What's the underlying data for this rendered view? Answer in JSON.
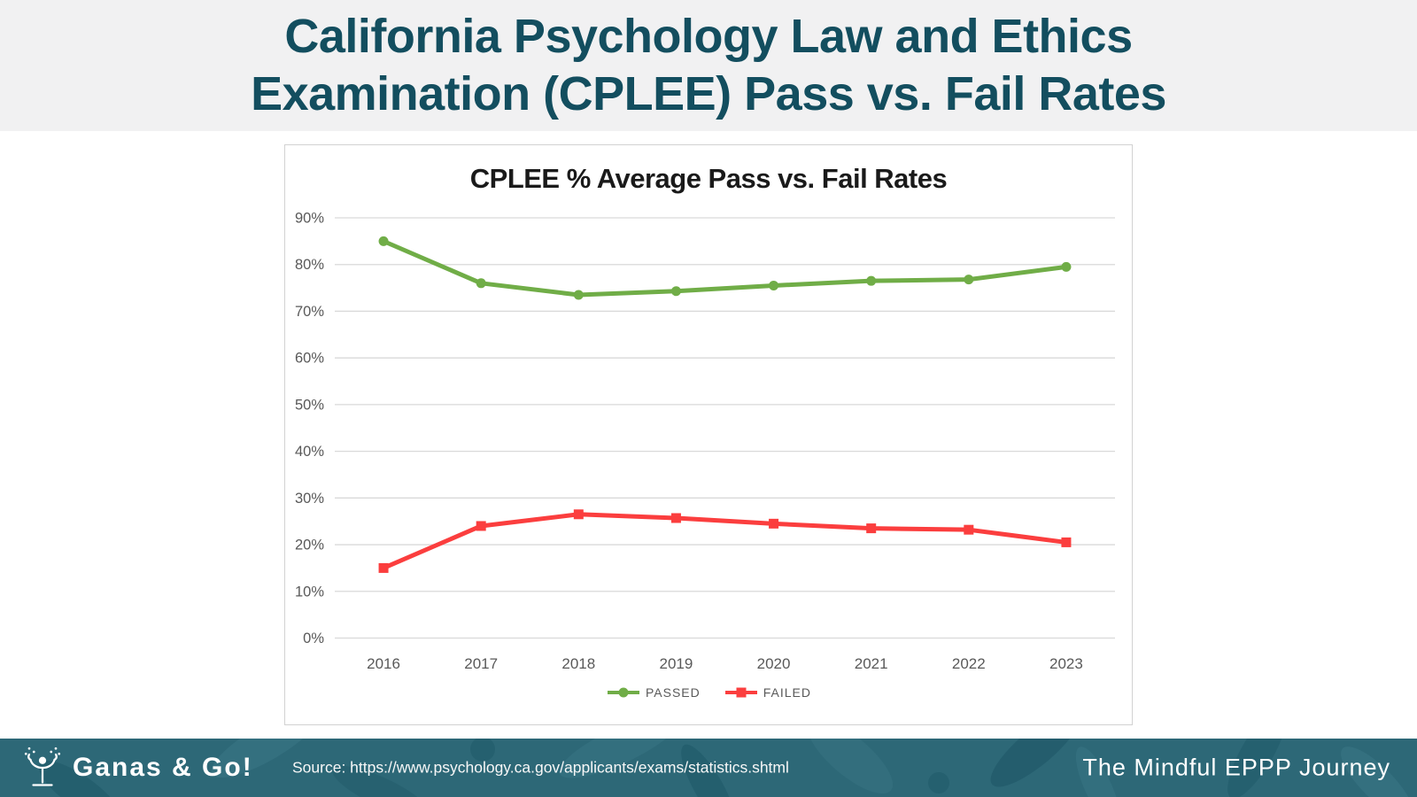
{
  "header": {
    "title_line1": "California Psychology Law and Ethics",
    "title_line2": "Examination (CPLEE) Pass vs. Fail Rates"
  },
  "chart_data": {
    "type": "line",
    "title": "CPLEE % Average Pass vs. Fail Rates",
    "categories": [
      "2016",
      "2017",
      "2018",
      "2019",
      "2020",
      "2021",
      "2022",
      "2023"
    ],
    "series": [
      {
        "name": "PASSED",
        "color": "#70ad47",
        "marker": "circle",
        "values": [
          85,
          76,
          73.5,
          74.3,
          75.5,
          76.5,
          76.8,
          79.5
        ]
      },
      {
        "name": "FAILED",
        "color": "#fb3e3e",
        "marker": "square",
        "values": [
          15,
          24,
          26.5,
          25.7,
          24.5,
          23.5,
          23.2,
          20.5
        ]
      }
    ],
    "xlabel": "",
    "ylabel": "",
    "ylim": [
      0,
      90
    ],
    "ytick_step": 10,
    "ytick_suffix": "%",
    "grid": true,
    "legend_position": "bottom"
  },
  "footer": {
    "logo_text": "Ganas & Go!",
    "source": "Source: https://www.psychology.ca.gov/applicants/exams/statistics.shtml",
    "tagline": "The Mindful EPPP Journey"
  },
  "theme": {
    "header_bg": "#f1f1f2",
    "title_color": "#134e5f",
    "footer_bg": "#2d6877",
    "grid_color": "#d9d9d9",
    "tick_color": "#595959",
    "pass_green": "#70ad47",
    "fail_red": "#fb3e3e"
  }
}
